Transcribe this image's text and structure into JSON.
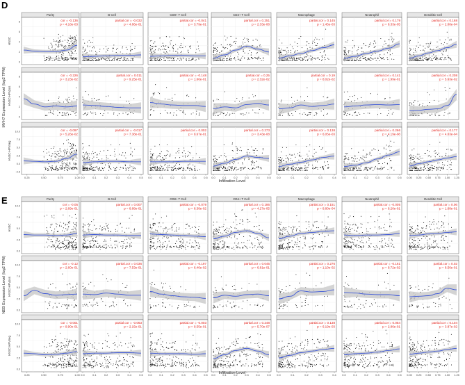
{
  "figure": {
    "panels": [
      {
        "label": "D",
        "ylabel": "MYH7 Expression Level (log2 TPM)",
        "xlabel": "Infiltration Level",
        "columns": [
          "Purity",
          "B Cell",
          "CD8+ T Cell",
          "CD4+ T Cell",
          "Macrophage",
          "Neutrophil",
          "Dendritic Cell"
        ],
        "rows": [
          "HNSC",
          "HNSC-HPVpos",
          "HNSC-HPVneg"
        ],
        "x_ticks": [
          [
            "0.25",
            "0.50",
            "0.75",
            "1.00"
          ],
          [
            "0.0",
            "0.1",
            "0.2",
            "0.3",
            "0.4",
            "0.5"
          ],
          [
            "0.0",
            "0.1",
            "0.2",
            "0.3",
            "0.4",
            "0.5"
          ],
          [
            "0.0",
            "0.1",
            "0.2",
            "0.3",
            "0.4",
            "0.5"
          ],
          [
            "0.0",
            "0.1",
            "0.2",
            "0.3",
            "0.4"
          ],
          [
            "0.0",
            "0.1",
            "0.2",
            "0.3",
            "0.4",
            "0.5"
          ],
          [
            "0.00",
            "0.25",
            "0.50",
            "0.75",
            "1.00",
            "1.25"
          ]
        ],
        "y_ticks": [
          [
            "0",
            "2",
            "4",
            "6",
            "8"
          ],
          [
            "0",
            "2",
            "4",
            "6",
            "8"
          ],
          [
            "-2.5",
            "0.0",
            "2.5",
            "5.0",
            "7.5",
            "10.0"
          ]
        ],
        "stats": [
          [
            {
              "c": "cor = -0.136",
              "p": "p = 4.18e-03"
            },
            {
              "c": "partial.cor = -0.032",
              "p": "p = 4.86e-01"
            },
            {
              "c": "partial.cor = -0.041",
              "p": "p = 3.79e-01"
            },
            {
              "c": "partial.cor = 0.251",
              "p": "p = 2.33e-08"
            },
            {
              "c": "partial.cor = 0.145",
              "p": "p = 1.45e-03"
            },
            {
              "c": "partial.cor = 0.179",
              "p": "p = 8.33e-05"
            },
            {
              "c": "partial.cor = 0.168",
              "p": "p = 2.08e-04"
            }
          ],
          [
            {
              "c": "cor = -0.226",
              "p": "p = 3.23e-02"
            },
            {
              "c": "partial.cor = 0.011",
              "p": "p = 9.25e-01"
            },
            {
              "c": "partial.cor = -0.148",
              "p": "p = 1.66e-01"
            },
            {
              "c": "partial.cor = 0.25",
              "p": "p = 2.32e-02"
            },
            {
              "c": "partial.cor = 0.19",
              "p": "p = 8.02e-02"
            },
            {
              "c": "partial.cor = 0.141",
              "p": "p = 1.99e-01"
            },
            {
              "c": "partial.cor = 0.208",
              "p": "p = 5.63e-02"
            }
          ],
          [
            {
              "c": "cor = -0.097",
              "p": "p = 5.26e-02"
            },
            {
              "c": "partial.cor = -0.017",
              "p": "p = 7.38e-01"
            },
            {
              "c": "partial.cor = 0.002",
              "p": "p = 9.67e-01"
            },
            {
              "c": "partial.cor = 0.273",
              "p": "p = 3.43e-08"
            },
            {
              "c": "partial.cor = 0.138",
              "p": "p = 6.05e-03"
            },
            {
              "c": "partial.cor = 0.266",
              "p": "p = 4.19e-08"
            },
            {
              "c": "partial.cor = 0.177",
              "p": "p = 4.03e-04"
            }
          ]
        ]
      },
      {
        "label": "E",
        "ylabel": "NEB Expression Level (log2 TPM)",
        "xlabel": "Infiltration Level",
        "columns": [
          "Purity",
          "B Cell",
          "CD8+ T Cell",
          "CD4+ T Cell",
          "Macrophage",
          "Neutrophil",
          "Dendritic Cell"
        ],
        "rows": [
          "HNSC",
          "HNSC-HPVpos",
          "HNSC-HPVneg"
        ],
        "x_ticks": [
          [
            "0.25",
            "0.50",
            "0.75",
            "1.00"
          ],
          [
            "0.0",
            "0.1",
            "0.2",
            "0.3",
            "0.4",
            "0.5"
          ],
          [
            "0.0",
            "0.1",
            "0.2",
            "0.3",
            "0.4",
            "0.5"
          ],
          [
            "0.0",
            "0.1",
            "0.2",
            "0.3",
            "0.4",
            "0.5"
          ],
          [
            "0.0",
            "0.1",
            "0.2",
            "0.3",
            "0.4"
          ],
          [
            "0.0",
            "0.1",
            "0.2",
            "0.3",
            "0.4",
            "0.5"
          ],
          [
            "0.00",
            "0.25",
            "0.50",
            "0.75",
            "1.00",
            "1.25"
          ]
        ],
        "y_ticks": [
          [
            "0.0",
            "2.5",
            "5.0",
            "7.5",
            "10.0"
          ],
          [
            "0.0",
            "2.5",
            "5.0",
            "7.5",
            "10.0"
          ],
          [
            "0.0",
            "2.5",
            "5.0",
            "7.5",
            "10.0"
          ]
        ],
        "stats": [
          [
            {
              "c": "cor = -0.05",
              "p": "p = 2.69e-01"
            },
            {
              "c": "partial.cor = 0.007",
              "p": "p = 8.88e-01"
            },
            {
              "c": "partial.cor = -0.079",
              "p": "p = 8.38e-02"
            },
            {
              "c": "partial.cor = 0.186",
              "p": "p = 4.27e-05"
            },
            {
              "c": "partial.cor = 0.151",
              "p": "p = 8.80e-04"
            },
            {
              "c": "partial.cor = -0.005",
              "p": "p = 9.20e-01"
            },
            {
              "c": "partial.cor = 0.06",
              "p": "p = 1.68e-01"
            }
          ],
          [
            {
              "c": "cor = -0.12",
              "p": "p = 2.60e-01"
            },
            {
              "c": "partial.cor = 0.036",
              "p": "p = 7.53e-01"
            },
            {
              "c": "partial.cor = -0.197",
              "p": "p = 6.40e-02"
            },
            {
              "c": "partial.cor = 0.045",
              "p": "p = 6.81e-01"
            },
            {
              "c": "partial.cor = 0.276",
              "p": "p = 1.10e-02"
            },
            {
              "c": "partial.cor = -0.161",
              "p": "p = 9.72e-02"
            },
            {
              "c": "partial.cor = 0.02",
              "p": "p = 8.56e-01"
            }
          ],
          [
            {
              "c": "cor = -0.001",
              "p": "p = 9.90e-01"
            },
            {
              "c": "partial.cor = -0.063",
              "p": "p = 2.15e-01"
            },
            {
              "c": "partial.cor = -0.003",
              "p": "p = 9.55e-01"
            },
            {
              "c": "partial.cor = 0.248",
              "p": "p = 5.70e-07"
            },
            {
              "c": "partial.cor = 0.138",
              "p": "p = 6.19e-03"
            },
            {
              "c": "partial.cor = 0.054",
              "p": "p = 2.86e-01"
            },
            {
              "c": "partial.cor = 0.104",
              "p": "p = 3.87e-02"
            }
          ]
        ]
      }
    ],
    "colors": {
      "points": "#111111",
      "smooth_line": "#3a55d6",
      "confidence_band": "#c6c6c6",
      "stat_text": "#e3231c",
      "strip_bg": "#e6e6e6",
      "grid": "#ececec",
      "frame": "#555555"
    },
    "smooth_shapes": [
      [
        [
          2.6,
          2.4,
          2.3,
          2.3,
          2.6,
          3.6
        ],
        [
          1.2,
          1.3,
          1.4,
          1.5,
          1.5,
          1.6
        ],
        [
          1.3,
          1.4,
          1.5,
          1.5,
          1.4,
          1.4
        ],
        [
          0.9,
          1.6,
          2.6,
          3.4,
          2.8,
          2.2
        ],
        [
          0.9,
          1.4,
          1.9,
          2.5,
          3.1,
          3.7
        ],
        [
          0.9,
          1.3,
          1.9,
          2.4,
          3.0,
          3.9
        ],
        [
          0.9,
          1.4,
          2.0,
          2.5,
          3.1,
          3.8
        ]
      ],
      [
        [
          3.9,
          2.8,
          2.2,
          2.4,
          2.2,
          2.4
        ],
        [
          2.6,
          2.5,
          2.3,
          2.1,
          2.0,
          2.0
        ],
        [
          3.1,
          2.8,
          2.6,
          2.5,
          2.5,
          2.3
        ],
        [
          1.8,
          2.2,
          2.0,
          2.7,
          2.9,
          2.6
        ],
        [
          1.8,
          2.0,
          2.6,
          2.3,
          2.5,
          2.8
        ],
        [
          2.2,
          2.4,
          2.6,
          2.7,
          2.6,
          2.7
        ],
        [
          1.4,
          1.5,
          1.7,
          1.8,
          2.5,
          4.8
        ]
      ],
      [
        [
          2.4,
          2.3,
          2.2,
          2.3,
          2.9,
          3.8
        ],
        [
          2.0,
          2.2,
          2.3,
          2.3,
          2.2,
          2.2
        ],
        [
          2.2,
          2.2,
          2.2,
          2.3,
          2.3,
          2.3
        ],
        [
          1.3,
          1.9,
          2.7,
          3.4,
          3.1,
          2.9
        ],
        [
          1.2,
          1.7,
          2.1,
          2.6,
          3.1,
          3.4
        ],
        [
          1.2,
          1.5,
          2.0,
          2.8,
          3.6,
          4.3
        ],
        [
          1.3,
          1.8,
          2.2,
          2.6,
          3.0,
          3.3
        ]
      ],
      [
        [
          3.2,
          3.1,
          3.1,
          3.0,
          3.1,
          3.4
        ],
        [
          3.1,
          3.2,
          3.1,
          3.1,
          3.0,
          3.0
        ],
        [
          3.3,
          3.2,
          3.1,
          3.0,
          2.9,
          2.8
        ],
        [
          2.4,
          2.9,
          3.6,
          3.9,
          3.4,
          2.6
        ],
        [
          2.4,
          2.9,
          3.4,
          3.6,
          3.8,
          3.9
        ],
        [
          3.1,
          3.0,
          3.1,
          3.1,
          3.2,
          3.4
        ],
        [
          3.0,
          3.1,
          3.3,
          3.4,
          3.6,
          3.7
        ]
      ],
      [
        [
          2.8,
          3.8,
          3.2,
          2.9,
          3.0,
          3.1
        ],
        [
          3.1,
          3.0,
          3.3,
          3.1,
          2.9,
          2.9
        ],
        [
          3.6,
          3.1,
          2.8,
          2.6,
          2.5,
          2.3
        ],
        [
          2.4,
          2.9,
          2.7,
          3.0,
          3.1,
          2.8
        ],
        [
          2.2,
          2.7,
          3.7,
          3.5,
          3.6,
          3.9
        ],
        [
          3.4,
          3.3,
          3.1,
          3.0,
          3.0,
          2.8
        ],
        [
          2.6,
          2.7,
          2.8,
          3.2,
          4.2,
          3.9
        ]
      ],
      [
        [
          3.1,
          3.0,
          2.8,
          2.9,
          3.1,
          3.4
        ],
        [
          3.0,
          3.1,
          3.1,
          3.2,
          3.2,
          3.1
        ],
        [
          3.1,
          3.0,
          3.0,
          3.0,
          2.9,
          3.0
        ],
        [
          2.1,
          2.8,
          3.6,
          4.0,
          3.5,
          2.8
        ],
        [
          2.2,
          2.7,
          3.2,
          3.5,
          3.8,
          4.0
        ],
        [
          2.8,
          3.0,
          3.1,
          3.3,
          3.6,
          3.9
        ],
        [
          2.9,
          3.1,
          3.3,
          3.5,
          3.8,
          4.0
        ]
      ]
    ]
  }
}
